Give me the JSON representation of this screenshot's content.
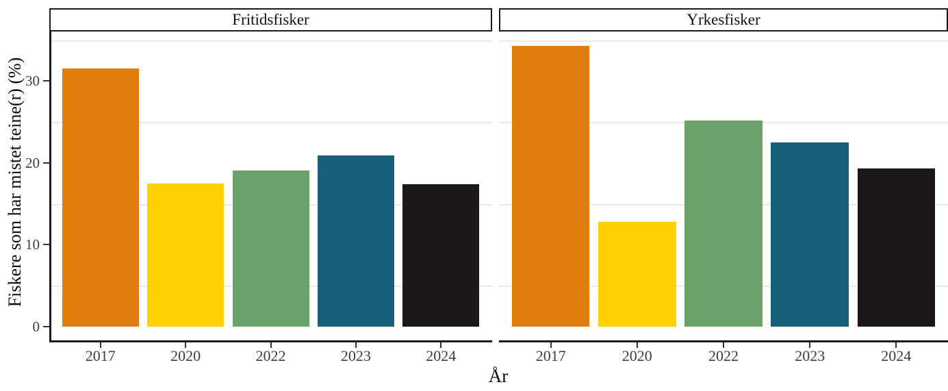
{
  "chart_data": {
    "type": "bar",
    "title": "",
    "xlabel": "År",
    "ylabel": "Fiskere som har mistet teine(r) (%)",
    "facets": [
      {
        "label": "Fritidsfisker",
        "categories": [
          "2017",
          "2020",
          "2022",
          "2023",
          "2024"
        ],
        "values": [
          31.5,
          17.5,
          19.1,
          20.9,
          17.4
        ]
      },
      {
        "label": "Yrkesfisker",
        "categories": [
          "2017",
          "2020",
          "2022",
          "2023",
          "2024"
        ],
        "values": [
          34.3,
          12.8,
          25.2,
          22.5,
          19.3
        ]
      }
    ],
    "bar_colors": [
      "#e17d0d",
      "#ffd103",
      "#6ba26b",
      "#16607c",
      "#1b1617"
    ],
    "ylim": [
      0,
      36
    ],
    "yticks": [
      0,
      10,
      20,
      30
    ],
    "minor_gridlines": [
      5,
      15,
      25,
      35
    ],
    "grid": "horizontal-minor-only",
    "legend": "none",
    "strip_style": "white-box-black-border",
    "axis_text_color": "#3d3d3d",
    "gridline_color": "#e9e9e9"
  }
}
